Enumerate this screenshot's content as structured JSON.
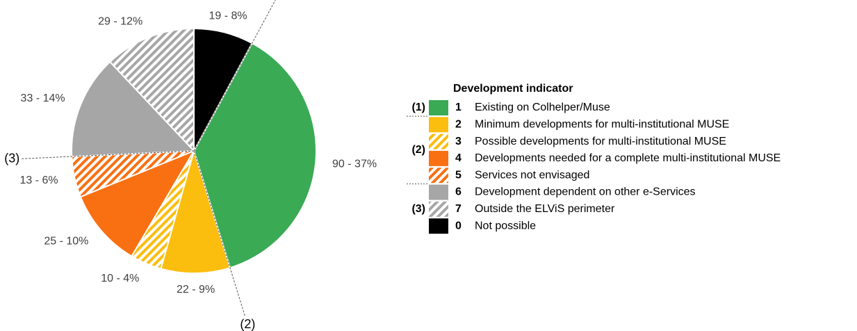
{
  "chart_data": {
    "type": "pie",
    "legend_title": "Development indicator",
    "categories": [
      "Existing on Colhelper/Muse",
      "Minimum developments for multi-institutional MUSE",
      "Possible developments for multi-institutional MUSE",
      "Developments needed for a complete multi-institutional MUSE",
      "Services not envisaged",
      "Development dependent on other e-Services",
      "Outside the ELViS perimeter",
      "Not possible"
    ],
    "codes": [
      "1",
      "2",
      "3",
      "4",
      "5",
      "6",
      "7",
      "0"
    ],
    "values": [
      90,
      22,
      10,
      25,
      13,
      33,
      29,
      19
    ],
    "value_labels": [
      "90 - 37%",
      "22 - 9%",
      "10 - 4%",
      "25 - 10%",
      "13 - 6%",
      "33 - 14%",
      "29 - 12%",
      "19 - 8%"
    ],
    "colors": [
      "#3aaa55",
      "#fbbd0e",
      "#fbbd0e",
      "#f97012",
      "#f97012",
      "#a6a6a6",
      "#a6a6a6",
      "#000000"
    ],
    "hatched": [
      false,
      false,
      true,
      false,
      true,
      false,
      true,
      false
    ],
    "annotations": [
      "(1)",
      "(2)",
      "(3)"
    ]
  }
}
